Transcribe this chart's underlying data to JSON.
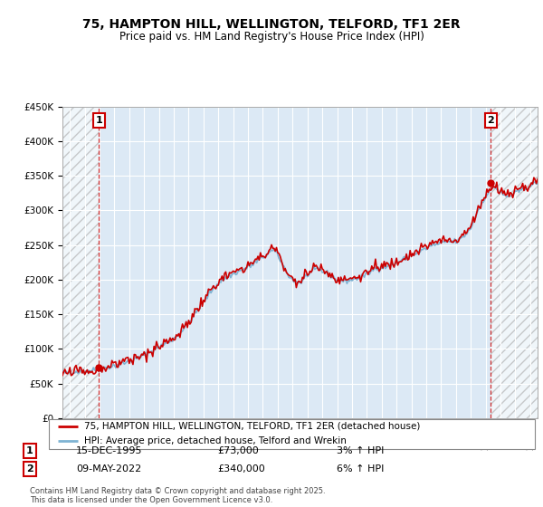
{
  "title1": "75, HAMPTON HILL, WELLINGTON, TELFORD, TF1 2ER",
  "title2": "Price paid vs. HM Land Registry's House Price Index (HPI)",
  "ylim": [
    0,
    450000
  ],
  "yticks": [
    0,
    50000,
    100000,
    150000,
    200000,
    250000,
    300000,
    350000,
    400000,
    450000
  ],
  "ytick_labels": [
    "£0",
    "£50K",
    "£100K",
    "£150K",
    "£200K",
    "£250K",
    "£300K",
    "£350K",
    "£400K",
    "£450K"
  ],
  "xlim_start": 1993.5,
  "xlim_end": 2025.5,
  "hpi_color": "#7fb3d3",
  "price_color": "#cc0000",
  "plot_bg_color": "#dce9f5",
  "background_color": "#ffffff",
  "grid_color": "#ffffff",
  "transaction1_year": 1995.958,
  "transaction1_price": 73000,
  "transaction1_label": "1",
  "transaction1_date": "15-DEC-1995",
  "transaction1_pct": "3%",
  "transaction2_year": 2022.36,
  "transaction2_price": 340000,
  "transaction2_label": "2",
  "transaction2_date": "09-MAY-2022",
  "transaction2_pct": "6%",
  "legend_line1": "75, HAMPTON HILL, WELLINGTON, TELFORD, TF1 2ER (detached house)",
  "legend_line2": "HPI: Average price, detached house, Telford and Wrekin",
  "footer": "Contains HM Land Registry data © Crown copyright and database right 2025.\nThis data is licensed under the Open Government Licence v3.0."
}
